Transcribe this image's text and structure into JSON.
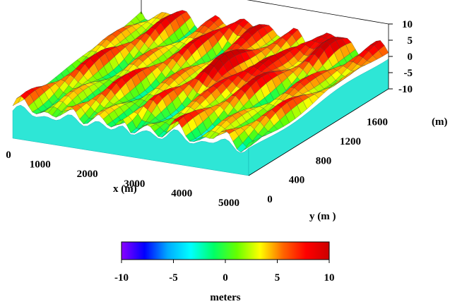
{
  "chart_data": {
    "type": "surface",
    "xlabel": "x (m)",
    "ylabel": "y (m )",
    "zlabel": "(m)",
    "xlim": [
      0,
      5000
    ],
    "ylim": [
      0,
      1800
    ],
    "zlim": [
      -10,
      10
    ],
    "x_ticks": [
      "0",
      "1000",
      "2000",
      "3000",
      "4000",
      "5000"
    ],
    "x_tick_values": [
      0,
      1000,
      2000,
      3000,
      4000,
      5000
    ],
    "y_ticks": [
      "0",
      "400",
      "800",
      "1200",
      "1600"
    ],
    "y_tick_values": [
      0,
      400,
      800,
      1200,
      1600
    ],
    "z_ticks": [
      "10",
      "5",
      "0",
      "-5",
      "-10"
    ],
    "z_tick_values": [
      10,
      5,
      0,
      -5,
      -10
    ],
    "colorbar": {
      "label": "meters",
      "range": [
        -10,
        10
      ],
      "ticks": [
        "-10",
        "-5",
        "0",
        "5",
        "10"
      ],
      "tick_values": [
        -10,
        -5,
        0,
        5,
        10
      ],
      "colormap": [
        "#8b00ff",
        "#0000ff",
        "#00aaff",
        "#00ffff",
        "#00ff66",
        "#66ff00",
        "#ffff00",
        "#ff6600",
        "#ff0000",
        "#cc0000"
      ]
    },
    "base_color": "#2ee6d6",
    "sea_level": 0
  }
}
